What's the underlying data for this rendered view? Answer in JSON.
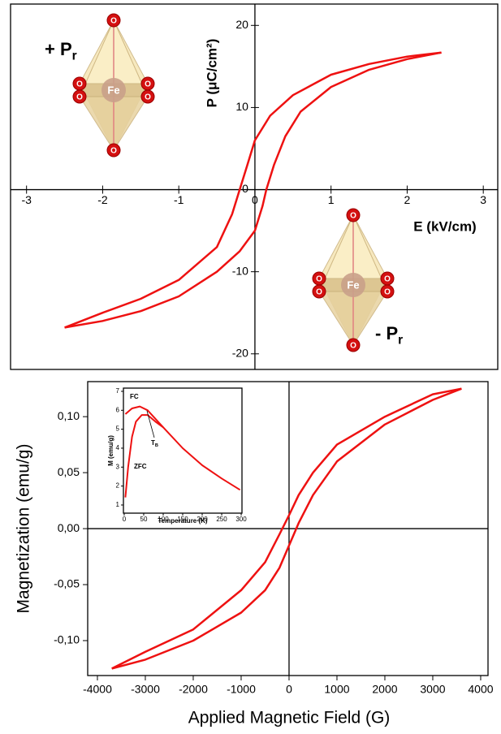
{
  "chart_data": [
    {
      "type": "line",
      "xlabel": "E (kV/cm)",
      "ylabel": "P (μC/cm²)",
      "xlim": [
        -3.21,
        3.19
      ],
      "ylim": [
        -21.9,
        22.6
      ],
      "xticks": [
        -3,
        -2,
        -1,
        0,
        1,
        2,
        3
      ],
      "yticks": [
        -20,
        -10,
        0,
        10,
        20
      ],
      "axes_through_origin": true,
      "annotations": [
        {
          "text": "+ P",
          "sub": "r"
        },
        {
          "text": "- P",
          "sub": "r"
        }
      ],
      "atom_labels": [
        "Fe",
        "O"
      ],
      "series": [
        {
          "color": "#ee1111",
          "x": [
            2.45,
            2.0,
            1.5,
            1.0,
            0.5,
            0.2,
            0,
            -0.1,
            -0.2,
            -0.3,
            -0.5,
            -1.0,
            -1.5,
            -2.0,
            -2.5
          ],
          "values": [
            16.7,
            16.2,
            15.3,
            14.0,
            11.5,
            9,
            6,
            3,
            0,
            -3,
            -7,
            -11,
            -13.3,
            -15.0,
            -16.8
          ]
        },
        {
          "color": "#ee1111",
          "x": [
            -2.5,
            -2.0,
            -1.5,
            -1.0,
            -0.5,
            -0.2,
            0,
            0.1,
            0.15,
            0.25,
            0.4,
            0.6,
            1.0,
            1.5,
            2.0,
            2.45
          ],
          "values": [
            -16.8,
            -16.0,
            -14.8,
            -13.0,
            -10,
            -7.5,
            -5,
            -2,
            0,
            3,
            6.5,
            9.5,
            12.5,
            14.6,
            15.9,
            16.7
          ]
        }
      ]
    },
    {
      "type": "line",
      "xlabel": "Applied Magnetic Field (G)",
      "ylabel": "Magnetization (emu/g)",
      "xlim": [
        -4203,
        4153
      ],
      "ylim": [
        -0.1312,
        0.1313
      ],
      "xticks": [
        -4000,
        -3000,
        -2000,
        -1000,
        0,
        1000,
        2000,
        3000,
        4000
      ],
      "yticks": [
        {
          "value": -0.1,
          "label": "-0,10"
        },
        {
          "value": -0.05,
          "label": "-0,05"
        },
        {
          "value": 0,
          "label": "0,00"
        },
        {
          "value": 0.05,
          "label": "0,05"
        },
        {
          "value": 0.1,
          "label": "0,10"
        }
      ],
      "zero_lines": true,
      "series": [
        {
          "color": "#ee1111",
          "x": [
            3600,
            3000,
            2000,
            1000,
            500,
            200,
            0,
            -200,
            -500,
            -1000,
            -2000,
            -3000,
            -3700
          ],
          "values": [
            0.125,
            0.12,
            0.1,
            0.075,
            0.05,
            0.03,
            0.012,
            -0.005,
            -0.03,
            -0.055,
            -0.09,
            -0.11,
            -0.125
          ]
        },
        {
          "color": "#ee1111",
          "x": [
            -3700,
            -3000,
            -2000,
            -1000,
            -500,
            -200,
            0,
            200,
            500,
            1000,
            2000,
            3000,
            3600
          ],
          "values": [
            -0.125,
            -0.117,
            -0.1,
            -0.075,
            -0.055,
            -0.035,
            -0.015,
            0.005,
            0.03,
            0.06,
            0.093,
            0.115,
            0.125
          ]
        }
      ]
    },
    {
      "type": "line",
      "xlabel": "Temperature (K)",
      "ylabel": "M (emu/g)",
      "xlim": [
        -2,
        302
      ],
      "ylim": [
        0.57,
        7.17
      ],
      "xticks": [
        0,
        50,
        100,
        150,
        200,
        250,
        300
      ],
      "yticks": [
        1,
        2,
        3,
        4,
        5,
        6,
        7
      ],
      "annotations": [
        {
          "text": "FC"
        },
        {
          "text": "ZFC"
        },
        {
          "text": "T",
          "sub": "B"
        }
      ],
      "series": [
        {
          "color": "#ee1111",
          "x": [
            3,
            20,
            40,
            60,
            100,
            150,
            200,
            250,
            297
          ],
          "values": [
            5.8,
            6.1,
            6.2,
            6.0,
            5.1,
            4.0,
            3.1,
            2.4,
            1.8
          ]
        },
        {
          "color": "#ee1111",
          "x": [
            3,
            10,
            20,
            30,
            45,
            60,
            80,
            100
          ],
          "values": [
            1.4,
            3.0,
            4.6,
            5.4,
            5.75,
            5.75,
            5.4,
            5.1
          ]
        }
      ]
    }
  ]
}
